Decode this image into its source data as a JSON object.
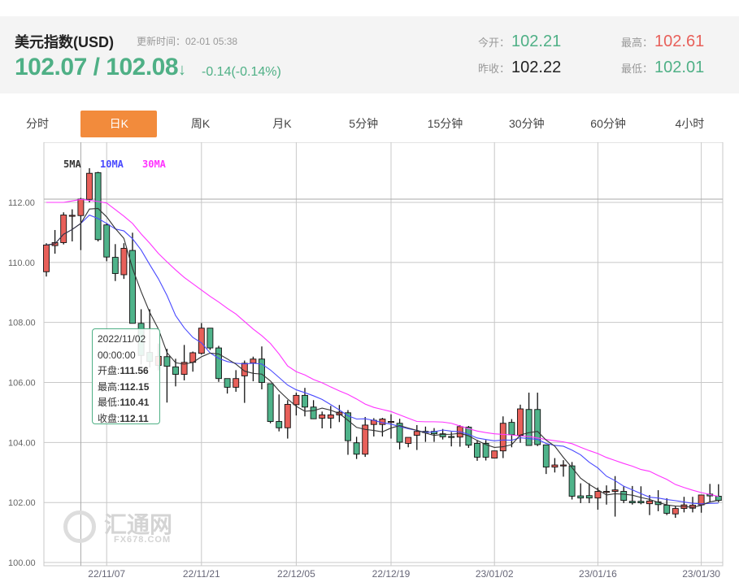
{
  "header": {
    "title": "美元指数(USD)",
    "update_time": "更新时间：02-01 05:38",
    "price": "102.07 / 102.08",
    "arrow": "↓",
    "change": "-0.14(-0.14%)",
    "open_label": "今开：",
    "open": "102.21",
    "high_label": "最高：",
    "high": "102.61",
    "prev_close_label": "昨收：",
    "prev_close": "102.22",
    "low_label": "最低：",
    "low": "102.01"
  },
  "tabs": [
    {
      "label": "分时",
      "active": false
    },
    {
      "label": "日K",
      "active": true
    },
    {
      "label": "周K",
      "active": false
    },
    {
      "label": "月K",
      "active": false
    },
    {
      "label": "5分钟",
      "active": false
    },
    {
      "label": "15分钟",
      "active": false
    },
    {
      "label": "30分钟",
      "active": false
    },
    {
      "label": "60分钟",
      "active": false
    },
    {
      "label": "4小时",
      "active": false
    }
  ],
  "colors": {
    "up": "#e8605a",
    "down": "#4fb38a",
    "ma5": "#333333",
    "ma10": "#4a4aff",
    "ma30": "#ff33ff",
    "accent": "#f28b3c",
    "price": "#4fb086",
    "high": "#e8605a"
  },
  "tooltip": {
    "date": "2022/11/02",
    "time": "00:00:00",
    "open_label": "开盘:",
    "open": "111.56",
    "high_label": "最高:",
    "high": "112.15",
    "low_label": "最低:",
    "low": "110.41",
    "close_label": "收盘:",
    "close": "112.11"
  },
  "watermark": {
    "name": "汇通网",
    "url": "FX678.COM"
  },
  "chart_data": {
    "type": "candlestick",
    "legend": [
      "5MA",
      "10MA",
      "30MA"
    ],
    "ylim": [
      100,
      113.9
    ],
    "yticks": [
      "100.00",
      "102.00",
      "104.00",
      "106.00",
      "108.00",
      "110.00",
      "112.00"
    ],
    "xticks": [
      {
        "label": "22/11/07",
        "index": 7
      },
      {
        "label": "22/11/21",
        "index": 18
      },
      {
        "label": "22/12/05",
        "index": 29
      },
      {
        "label": "22/12/19",
        "index": 40
      },
      {
        "label": "23/01/02",
        "index": 52
      },
      {
        "label": "23/01/16",
        "index": 64
      },
      {
        "label": "23/01/30",
        "index": 76
      }
    ],
    "grid": true,
    "crosshair_index": 4,
    "ohlc": [
      [
        109.69,
        110.64,
        109.53,
        110.58
      ],
      [
        110.56,
        111.08,
        110.29,
        110.66
      ],
      [
        110.66,
        111.67,
        110.6,
        111.58
      ],
      [
        111.55,
        111.77,
        110.7,
        111.57
      ],
      [
        111.56,
        112.15,
        110.41,
        112.11
      ],
      [
        112.1,
        113.14,
        112.0,
        112.97
      ],
      [
        112.99,
        113.02,
        110.7,
        110.76
      ],
      [
        111.25,
        111.3,
        110.04,
        110.18
      ],
      [
        110.17,
        110.61,
        109.38,
        109.63
      ],
      [
        109.59,
        110.64,
        109.45,
        110.47
      ],
      [
        110.4,
        110.99,
        107.97,
        107.97
      ],
      [
        107.97,
        108.44,
        106.6,
        106.9
      ],
      [
        107.0,
        108.44,
        106.5,
        106.7
      ],
      [
        106.57,
        107.3,
        106.4,
        106.87
      ],
      [
        106.86,
        107.12,
        105.33,
        106.54
      ],
      [
        106.52,
        106.79,
        105.87,
        106.27
      ],
      [
        106.27,
        107.25,
        106.07,
        106.67
      ],
      [
        106.67,
        107.03,
        106.36,
        106.99
      ],
      [
        106.97,
        107.98,
        106.93,
        107.81
      ],
      [
        107.81,
        107.81,
        107.08,
        107.15
      ],
      [
        107.15,
        107.22,
        106.02,
        106.13
      ],
      [
        106.13,
        106.13,
        105.63,
        105.84
      ],
      [
        105.84,
        106.41,
        105.69,
        106.13
      ],
      [
        106.22,
        106.73,
        105.32,
        106.64
      ],
      [
        106.65,
        106.86,
        106.04,
        106.78
      ],
      [
        106.78,
        107.2,
        105.77,
        106.0
      ],
      [
        105.96,
        105.96,
        104.64,
        104.7
      ],
      [
        104.7,
        105.6,
        104.37,
        104.49
      ],
      [
        104.49,
        105.41,
        104.13,
        105.27
      ],
      [
        105.26,
        105.66,
        104.9,
        105.57
      ],
      [
        105.57,
        105.82,
        104.87,
        105.18
      ],
      [
        105.18,
        105.41,
        104.78,
        104.79
      ],
      [
        104.81,
        105.03,
        104.47,
        104.92
      ],
      [
        104.81,
        105.22,
        104.47,
        104.92
      ],
      [
        104.92,
        105.25,
        104.68,
        105.01
      ],
      [
        104.99,
        105.08,
        103.59,
        104.06
      ],
      [
        103.99,
        104.19,
        103.45,
        103.61
      ],
      [
        103.61,
        104.85,
        103.52,
        104.58
      ],
      [
        104.6,
        104.81,
        104.2,
        104.74
      ],
      [
        104.6,
        104.82,
        104.2,
        104.78
      ],
      [
        104.68,
        104.94,
        104.13,
        104.7
      ],
      [
        104.64,
        104.79,
        103.77,
        104.01
      ],
      [
        103.97,
        104.17,
        103.84,
        104.17
      ],
      [
        104.24,
        104.58,
        103.75,
        104.37
      ],
      [
        104.37,
        104.53,
        104.02,
        104.33
      ],
      [
        104.37,
        104.48,
        104.02,
        104.29
      ],
      [
        104.29,
        104.45,
        104.1,
        104.19
      ],
      [
        104.2,
        104.35,
        103.87,
        104.19
      ],
      [
        104.18,
        104.58,
        103.86,
        104.53
      ],
      [
        104.51,
        104.55,
        103.82,
        103.91
      ],
      [
        103.97,
        104.08,
        103.39,
        103.51
      ],
      [
        103.97,
        104.08,
        103.4,
        103.51
      ],
      [
        103.48,
        103.72,
        103.48,
        103.72
      ],
      [
        103.72,
        104.87,
        103.48,
        104.64
      ],
      [
        104.67,
        104.78,
        103.84,
        104.26
      ],
      [
        104.24,
        105.26,
        103.99,
        105.12
      ],
      [
        105.1,
        105.66,
        103.9,
        103.9
      ],
      [
        105.1,
        105.66,
        103.88,
        103.93
      ],
      [
        103.92,
        103.92,
        102.95,
        103.18
      ],
      [
        103.18,
        103.48,
        103.0,
        103.25
      ],
      [
        103.25,
        103.41,
        102.86,
        103.25
      ],
      [
        103.22,
        103.35,
        102.1,
        102.21
      ],
      [
        102.22,
        102.64,
        101.98,
        102.15
      ],
      [
        102.23,
        102.64,
        101.98,
        102.15
      ],
      [
        102.15,
        102.5,
        101.76,
        102.37
      ],
      [
        102.36,
        102.57,
        101.93,
        102.37
      ],
      [
        102.37,
        102.88,
        101.53,
        102.42
      ],
      [
        102.37,
        102.55,
        101.98,
        102.07
      ],
      [
        102.04,
        102.55,
        101.93,
        101.99
      ],
      [
        102.04,
        102.54,
        101.94,
        101.99
      ],
      [
        101.96,
        102.25,
        101.58,
        102.05
      ],
      [
        102.02,
        102.41,
        101.71,
        101.93
      ],
      [
        101.91,
        102.14,
        101.58,
        101.64
      ],
      [
        101.62,
        101.87,
        101.49,
        101.8
      ],
      [
        101.8,
        102.19,
        101.67,
        101.92
      ],
      [
        101.81,
        102.19,
        101.67,
        101.91
      ],
      [
        101.92,
        102.25,
        101.66,
        102.25
      ],
      [
        102.28,
        102.62,
        102.0,
        102.22
      ],
      [
        102.21,
        102.61,
        102.01,
        102.07
      ]
    ],
    "ma30": [
      112.0,
      112.0,
      112.0,
      112.05,
      112.1,
      112.07,
      112.03,
      111.98,
      111.76,
      111.54,
      111.3,
      110.95,
      110.64,
      110.3,
      110.02,
      109.75,
      109.5,
      109.29,
      109.08,
      108.87,
      108.68,
      108.47,
      108.28,
      108.03,
      107.78,
      107.56,
      107.3,
      106.95,
      106.55,
      106.36,
      106.25,
      106.1,
      105.99,
      105.85,
      105.72,
      105.6,
      105.45,
      105.28,
      105.17,
      105.1,
      105.03,
      104.92,
      104.81,
      104.7,
      104.69,
      104.69,
      104.68,
      104.64,
      104.55,
      104.46,
      104.38,
      104.33,
      104.29,
      104.27,
      104.25,
      104.22,
      104.2,
      104.15,
      104.1,
      104.06,
      104.02,
      103.96,
      103.84,
      103.73,
      103.63,
      103.5,
      103.4,
      103.3,
      103.21,
      103.1,
      103.04,
      102.9,
      102.77,
      102.6,
      102.5,
      102.41,
      102.33,
      102.27,
      102.2
    ]
  }
}
